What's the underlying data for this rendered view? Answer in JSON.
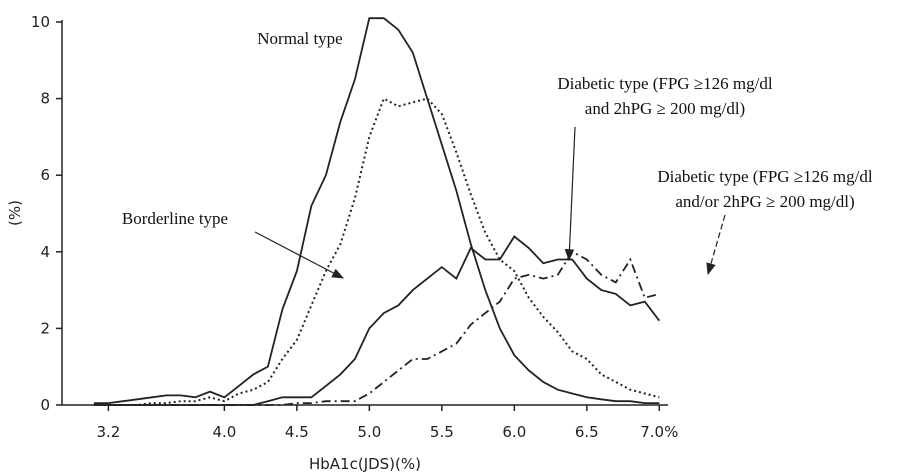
{
  "chart_data": {
    "type": "line",
    "x_label": "HbA1c(JDS)(%)",
    "y_label": "(%)",
    "x": [
      3.1,
      3.2,
      3.3,
      3.4,
      3.5,
      3.6,
      3.7,
      3.8,
      3.9,
      4.0,
      4.1,
      4.2,
      4.3,
      4.4,
      4.5,
      4.6,
      4.7,
      4.8,
      4.9,
      5.0,
      5.1,
      5.2,
      5.3,
      5.4,
      5.5,
      5.6,
      5.7,
      5.8,
      5.9,
      6.0,
      6.1,
      6.2,
      6.3,
      6.4,
      6.5,
      6.6,
      6.7,
      6.8,
      6.9,
      7.0
    ],
    "series": [
      {
        "color": "#222",
        "dash": "solid",
        "values": [
          0.05,
          0.05,
          0.1,
          0.15,
          0.2,
          0.25,
          0.25,
          0.2,
          0.35,
          0.2,
          0.5,
          0.8,
          1.0,
          2.5,
          3.5,
          5.2,
          6.0,
          7.4,
          8.5,
          10.1,
          10.1,
          9.8,
          9.2,
          8.0,
          6.8,
          5.6,
          4.2,
          3.0,
          2.0,
          1.3,
          0.9,
          0.6,
          0.4,
          0.3,
          0.2,
          0.15,
          0.1,
          0.1,
          0.05,
          0.05
        ]
      },
      {
        "color": "#222",
        "dash": "dotted",
        "values": [
          0,
          0,
          0,
          0,
          0.05,
          0.05,
          0.1,
          0.1,
          0.2,
          0.1,
          0.3,
          0.4,
          0.6,
          1.2,
          1.7,
          2.6,
          3.5,
          4.2,
          5.4,
          7.0,
          8.0,
          7.8,
          7.9,
          8.0,
          7.6,
          6.6,
          5.5,
          4.5,
          3.8,
          3.5,
          2.8,
          2.3,
          1.9,
          1.4,
          1.2,
          0.8,
          0.6,
          0.4,
          0.3,
          0.2
        ]
      },
      {
        "color": "#222",
        "dash": "solid",
        "values": [
          0,
          0,
          0,
          0,
          0,
          0,
          0,
          0,
          0,
          0,
          0,
          0,
          0.1,
          0.2,
          0.2,
          0.2,
          0.5,
          0.8,
          1.2,
          2.0,
          2.4,
          2.6,
          3.0,
          3.3,
          3.6,
          3.3,
          4.1,
          3.8,
          3.8,
          4.4,
          4.1,
          3.7,
          3.8,
          3.8,
          3.3,
          3.0,
          2.9,
          2.6,
          2.7,
          2.2
        ]
      },
      {
        "color": "#222",
        "dash": "dashdot",
        "values": [
          0,
          0,
          0,
          0,
          0,
          0,
          0,
          0,
          0,
          0,
          0,
          0,
          0,
          0,
          0.05,
          0.05,
          0.1,
          0.1,
          0.1,
          0.3,
          0.6,
          0.9,
          1.2,
          1.2,
          1.4,
          1.6,
          2.1,
          2.4,
          2.7,
          3.3,
          3.4,
          3.3,
          3.4,
          4.0,
          3.8,
          3.4,
          3.2,
          3.8,
          2.8,
          2.9
        ]
      }
    ],
    "annotations": [
      {
        "lines": [
          "Normal type"
        ]
      },
      {
        "lines": [
          "Borderline type"
        ]
      },
      {
        "lines": [
          "Diabetic type (FPG ≥126 mg/dl",
          "and 2hPG ≥ 200 mg/dl)"
        ]
      },
      {
        "lines": [
          "Diabetic type (FPG ≥126 mg/dl",
          "and/or 2hPG ≥ 200 mg/dl)"
        ]
      }
    ],
    "xlim": [
      2.88,
      7.06
    ],
    "ylim": [
      0,
      10
    ],
    "xticks": [
      3.2,
      {
        "value": 4,
        "label": "4.0"
      },
      4.5,
      {
        "value": 5,
        "label": "5.0"
      },
      5.5,
      {
        "value": 6,
        "label": "6.0"
      },
      6.5,
      {
        "value": 7,
        "label": "7.0%"
      }
    ],
    "yticks": [
      0,
      2,
      4,
      6,
      8,
      10
    ]
  }
}
